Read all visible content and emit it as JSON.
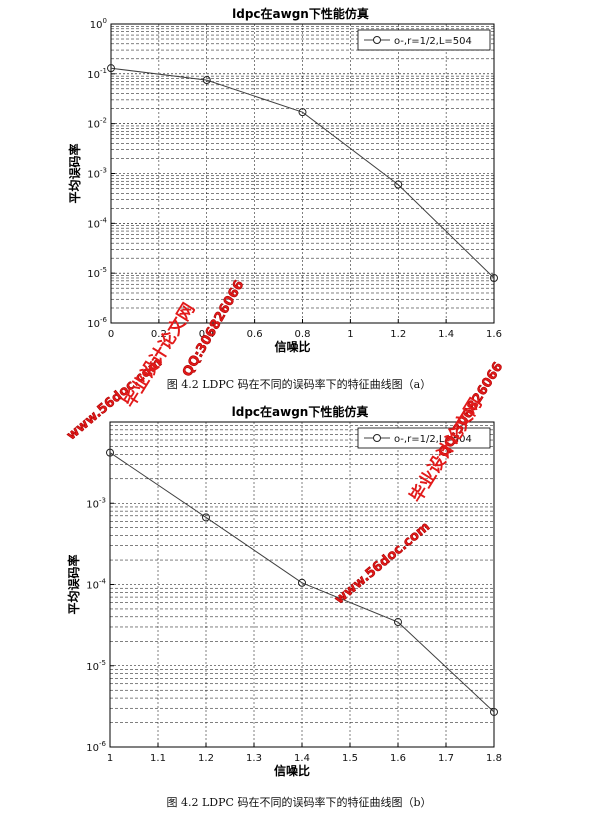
{
  "colors": {
    "line": "#404040",
    "grid": "#000000",
    "watermark": "#e21a1a"
  },
  "captions": {
    "a": "图 4.2 LDPC 码在不同的误码率下的特征曲线图（a）",
    "b": "图 4.2 LDPC 码在不同的误码率下的特征曲线图（b）"
  },
  "watermarks": {
    "site": "www.56doc.com",
    "qq": "QQ:306826066",
    "brand": "毕业设计论文网"
  },
  "chart_data": [
    {
      "type": "line",
      "title": "ldpc在awgn下性能仿真",
      "xlabel": "信噪比",
      "ylabel": "平均误码率",
      "xlim": [
        0,
        1.6
      ],
      "ylim": [
        1e-06,
        1
      ],
      "yscale": "log",
      "xticks": [
        "0",
        "0.2",
        "0.4",
        "0.6",
        "0.8",
        "1",
        "1.2",
        "1.4",
        "1.6"
      ],
      "yticks": [
        "10^0",
        "10^-1",
        "10^-2",
        "10^-3",
        "10^-4",
        "10^-5",
        "10^-6"
      ],
      "grid": true,
      "legend_position": "top-right",
      "series": [
        {
          "name": "o-,r=1/2,L=504",
          "marker": "circle",
          "x": [
            0,
            0.4,
            0.8,
            1.2,
            1.6
          ],
          "y": [
            0.13,
            0.075,
            0.017,
            0.0006,
            8e-06
          ]
        }
      ]
    },
    {
      "type": "line",
      "title": "ldpc在awgn下性能仿真",
      "xlabel": "信噪比",
      "ylabel": "平均误码率",
      "xlim": [
        1,
        1.8
      ],
      "ylim": [
        1e-06,
        0.01
      ],
      "yscale": "log",
      "xticks": [
        "1",
        "1.1",
        "1.2",
        "1.3",
        "1.4",
        "1.5",
        "1.6",
        "1.7",
        "1.8"
      ],
      "yticks": [
        "10^-3",
        "10^-4",
        "10^-5",
        "10^-6"
      ],
      "grid": true,
      "legend_position": "top-right",
      "series": [
        {
          "name": "o-,r=1/2,L=504",
          "marker": "circle",
          "x": [
            1,
            1.2,
            1.4,
            1.6,
            1.8
          ],
          "y": [
            0.0042,
            0.00067,
            0.000105,
            3.45e-05,
            2.7e-06
          ]
        }
      ]
    }
  ]
}
